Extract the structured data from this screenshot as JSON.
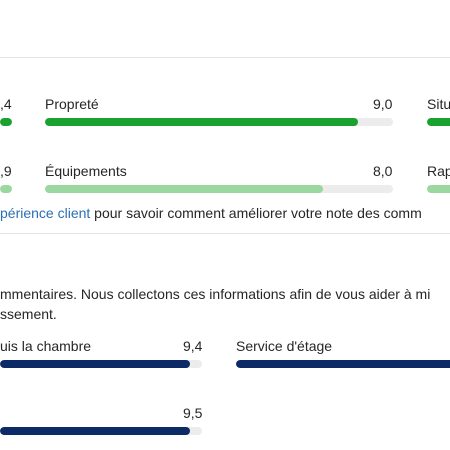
{
  "guest_scores": {
    "cut_left_values": [
      "4",
      "9"
    ],
    "items": [
      {
        "label": "Propreté",
        "value": "9,0",
        "fraction": 0.9,
        "color": "#1aa12e"
      },
      {
        "label": "Équipements",
        "value": "8,0",
        "fraction": 0.8,
        "color": "#9bd8a0"
      }
    ],
    "cut_right_labels": [
      "Situ",
      "Rap"
    ],
    "footnote": {
      "link_text": "périence client",
      "rest": " pour savoir comment améliorer votre note des comm"
    }
  },
  "comments": {
    "intro_line_1": "mmentaires. Nous collectons ces informations afin de vous aider à mi",
    "intro_line_2": "ssement.",
    "items": [
      {
        "label": "uis la chambre",
        "value": "9,4",
        "fraction": 0.94
      },
      {
        "label": "Service d'étage",
        "value": "",
        "fraction": 1.0
      },
      {
        "label": "",
        "value": "9,5",
        "fraction": 0.95
      }
    ]
  },
  "colors": {
    "green": "#1aa12e",
    "light_green": "#9bd8a0",
    "navy": "#0b2a66",
    "link": "#2b6fb5"
  }
}
